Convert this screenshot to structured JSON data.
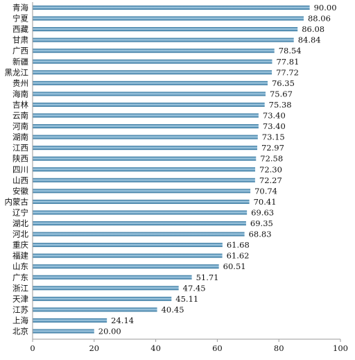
{
  "chart_data": {
    "type": "bar",
    "orientation": "horizontal",
    "categories": [
      "青海",
      "宁夏",
      "西藏",
      "甘肃",
      "广西",
      "新疆",
      "黑龙江",
      "贵州",
      "海南",
      "吉林",
      "云南",
      "河南",
      "湖南",
      "江西",
      "陕西",
      "四川",
      "山西",
      "安徽",
      "内蒙古",
      "辽宁",
      "湖北",
      "河北",
      "重庆",
      "福建",
      "山东",
      "广东",
      "浙江",
      "天津",
      "江苏",
      "上海",
      "北京"
    ],
    "values": [
      90.0,
      88.06,
      86.08,
      84.84,
      78.54,
      77.81,
      77.72,
      76.35,
      75.67,
      75.38,
      73.4,
      73.4,
      73.15,
      72.97,
      72.58,
      72.3,
      72.27,
      70.74,
      70.41,
      69.63,
      69.35,
      68.83,
      61.68,
      61.62,
      60.51,
      51.71,
      47.45,
      45.11,
      40.45,
      24.14,
      20.0
    ],
    "value_labels": [
      "90.00",
      "88.06",
      "86.08",
      "84.84",
      "78.54",
      "77.81",
      "77.72",
      "76.35",
      "75.67",
      "75.38",
      "73.40",
      "73.40",
      "73.15",
      "72.97",
      "72.58",
      "72.30",
      "72.27",
      "70.74",
      "70.41",
      "69.63",
      "69.35",
      "68.83",
      "61.68",
      "61.62",
      "60.51",
      "51.71",
      "47.45",
      "45.11",
      "40.45",
      "24.14",
      "20.00"
    ],
    "x_ticks": [
      "0",
      "20",
      "40",
      "60",
      "80",
      "100"
    ],
    "xlim": [
      0,
      100
    ],
    "title": "",
    "xlabel": "",
    "ylabel": "",
    "grid": false,
    "legend": "none",
    "bar_color": "#2b6f99",
    "bar_highlight": "#a9cfe6"
  }
}
